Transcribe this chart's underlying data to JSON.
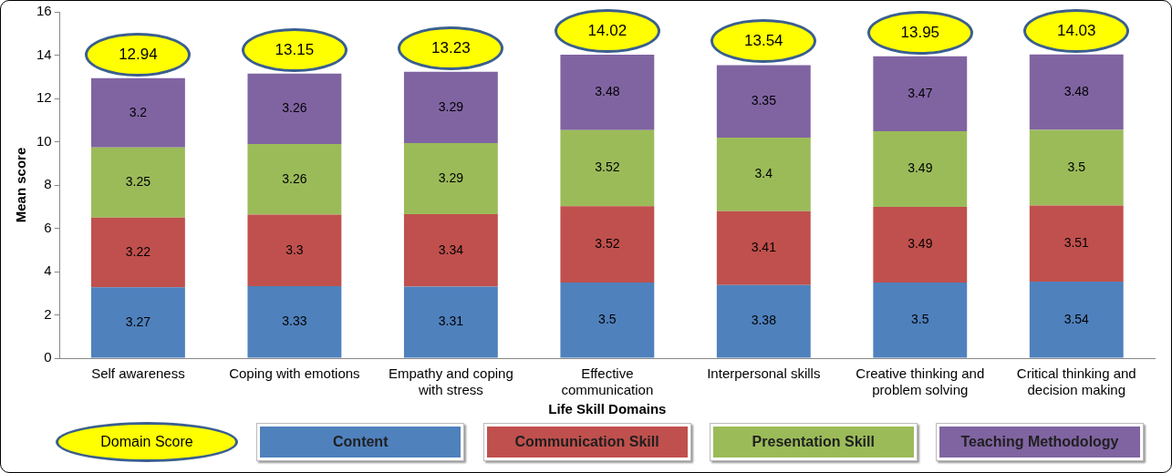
{
  "chart_data": {
    "type": "bar",
    "stacked": true,
    "xlabel": "Life Skill Domains",
    "ylabel": "Mean score",
    "categories": [
      "Self awareness",
      "Coping with emotions",
      "Empathy and coping with stress",
      "Effective communication",
      "Interpersonal skills",
      "Creative thinking and problem solving",
      "Critical thinking and decision making"
    ],
    "series": [
      {
        "name": "Content",
        "color": "#4f81bd",
        "values": [
          3.27,
          3.33,
          3.31,
          3.5,
          3.38,
          3.5,
          3.54
        ]
      },
      {
        "name": "Communication Skill",
        "color": "#c0504d",
        "values": [
          3.22,
          3.3,
          3.34,
          3.52,
          3.41,
          3.49,
          3.51
        ]
      },
      {
        "name": "Presentation Skill",
        "color": "#9bbb59",
        "values": [
          3.25,
          3.26,
          3.29,
          3.52,
          3.4,
          3.49,
          3.5
        ]
      },
      {
        "name": "Teaching Methodology",
        "color": "#8064a2",
        "values": [
          3.2,
          3.26,
          3.29,
          3.48,
          3.35,
          3.47,
          3.48
        ]
      }
    ],
    "totals": [
      "12.94",
      "13.15",
      "13.23",
      "14.02",
      "13.54",
      "13.95",
      "14.03"
    ],
    "data_labels": true,
    "ylim": [
      0,
      16
    ],
    "yticks": [
      0,
      2,
      4,
      6,
      8,
      10,
      12,
      14,
      16
    ],
    "grid": false,
    "legend": "bottom",
    "annotations": [
      "Domain Score"
    ]
  }
}
